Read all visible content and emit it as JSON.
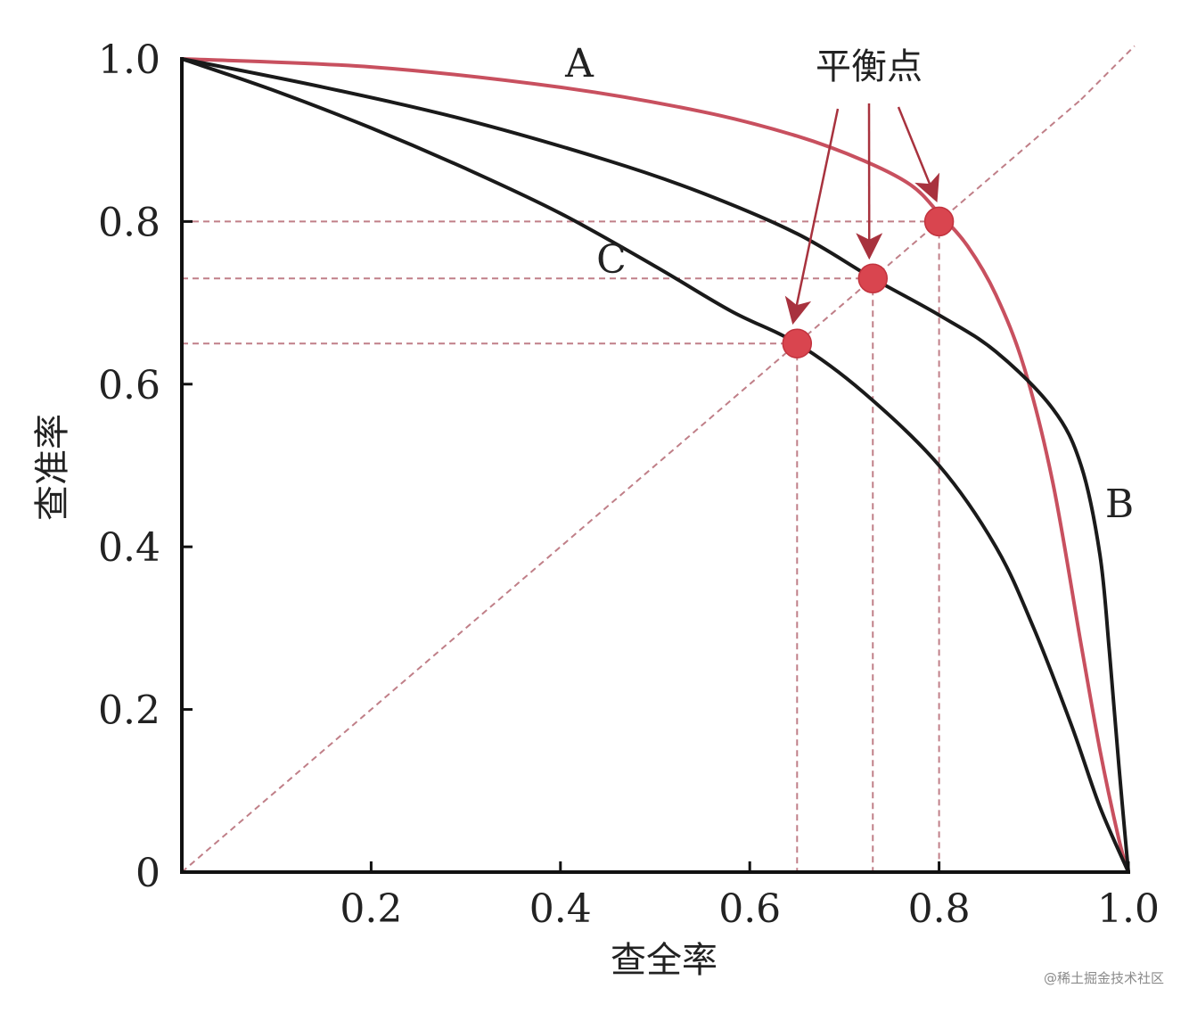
{
  "chart_data": {
    "type": "line",
    "title": "",
    "xlabel": "查全率",
    "ylabel": "查准率",
    "xlim": [
      0,
      1.0
    ],
    "ylim": [
      0,
      1.0
    ],
    "x_ticks": [
      0.2,
      0.4,
      0.6,
      0.8,
      1.0
    ],
    "x_tick_labels": [
      "0.2",
      "0.4",
      "0.6",
      "0.8",
      "1.0"
    ],
    "y_ticks": [
      0,
      0.2,
      0.4,
      0.6,
      0.8,
      1.0
    ],
    "y_tick_labels": [
      "0",
      "0.2",
      "0.4",
      "0.6",
      "0.8",
      "1.0"
    ],
    "grid": false,
    "series": [
      {
        "name": "A",
        "color": "#c8505f",
        "x": [
          0,
          0.2,
          0.4,
          0.55,
          0.65,
          0.72,
          0.77,
          0.8,
          0.83,
          0.86,
          0.89,
          0.92,
          0.95,
          0.97,
          0.99,
          1.0
        ],
        "y": [
          1.0,
          0.99,
          0.965,
          0.935,
          0.905,
          0.875,
          0.845,
          0.81,
          0.77,
          0.71,
          0.62,
          0.48,
          0.28,
          0.15,
          0.04,
          0.0
        ]
      },
      {
        "name": "B",
        "color": "#1a1a1a",
        "x": [
          0,
          0.15,
          0.3,
          0.45,
          0.55,
          0.65,
          0.73,
          0.8,
          0.86,
          0.92,
          0.95,
          0.97,
          0.98,
          0.99,
          1.0
        ],
        "y": [
          1.0,
          0.965,
          0.925,
          0.875,
          0.835,
          0.785,
          0.73,
          0.685,
          0.64,
          0.57,
          0.5,
          0.39,
          0.27,
          0.13,
          0.0
        ]
      },
      {
        "name": "C",
        "color": "#1a1a1a",
        "x": [
          0,
          0.1,
          0.2,
          0.3,
          0.4,
          0.5,
          0.58,
          0.65,
          0.72,
          0.8,
          0.86,
          0.9,
          0.94,
          0.97,
          1.0
        ],
        "y": [
          1.0,
          0.96,
          0.915,
          0.865,
          0.81,
          0.745,
          0.69,
          0.65,
          0.59,
          0.5,
          0.4,
          0.3,
          0.18,
          0.08,
          0.0
        ]
      }
    ],
    "reference_line": {
      "style": "dashed",
      "color": "#c07f88",
      "x": [
        0,
        1.0
      ],
      "y": [
        0,
        1.0
      ]
    },
    "breakeven_points": [
      {
        "curve": "A",
        "x": 0.8,
        "y": 0.8
      },
      {
        "curve": "B",
        "x": 0.73,
        "y": 0.73
      },
      {
        "curve": "C",
        "x": 0.65,
        "y": 0.65
      }
    ],
    "annotation": "平衡点",
    "curve_labels": [
      "A",
      "B",
      "C"
    ],
    "marker_color": "#d9454f",
    "guide_color": "#c07f88"
  },
  "watermark": "@稀土掘金技术社区"
}
